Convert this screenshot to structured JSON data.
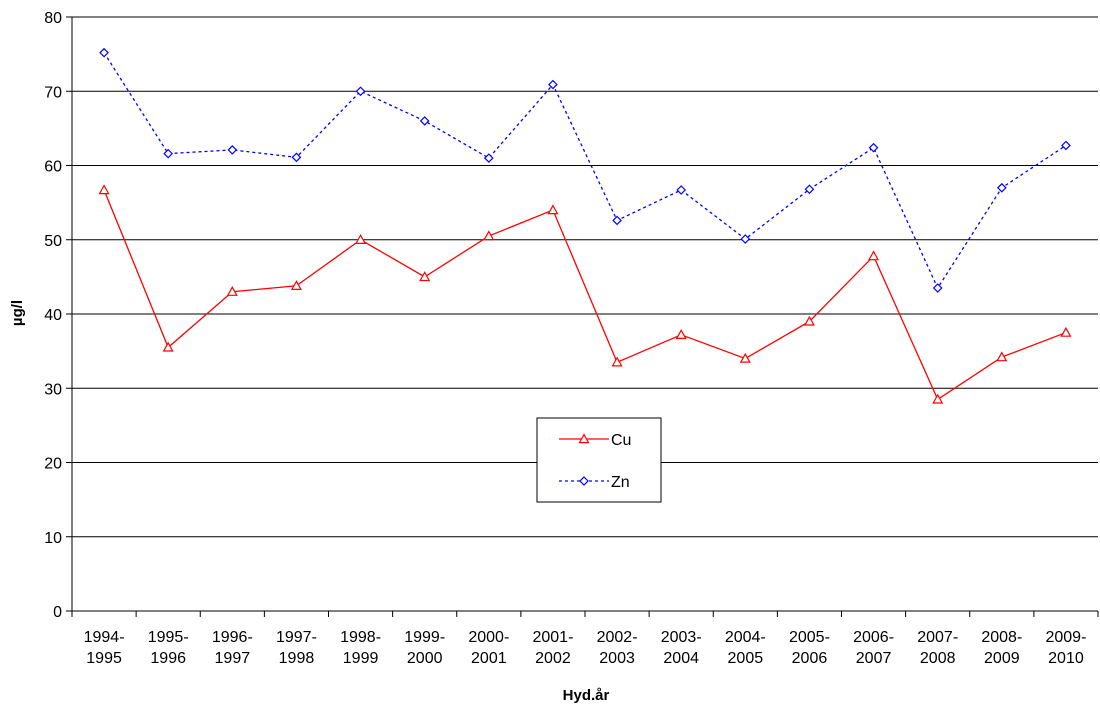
{
  "chart_data": {
    "type": "line",
    "title": "",
    "xlabel": "Hyd.år",
    "ylabel": "µg/l",
    "ylim": [
      0,
      80
    ],
    "yticks": [
      0,
      10,
      20,
      30,
      40,
      50,
      60,
      70,
      80
    ],
    "grid": true,
    "legend_position": "center",
    "categories": [
      [
        "1994-",
        "1995"
      ],
      [
        "1995-",
        "1996"
      ],
      [
        "1996-",
        "1997"
      ],
      [
        "1997-",
        "1998"
      ],
      [
        "1998-",
        "1999"
      ],
      [
        "1999-",
        "2000"
      ],
      [
        "2000-",
        "2001"
      ],
      [
        "2001-",
        "2002"
      ],
      [
        "2002-",
        "2003"
      ],
      [
        "2003-",
        "2004"
      ],
      [
        "2004-",
        "2005"
      ],
      [
        "2005-",
        "2006"
      ],
      [
        "2006-",
        "2007"
      ],
      [
        "2007-",
        "2008"
      ],
      [
        "2008-",
        "2009"
      ],
      [
        "2009-",
        "2010"
      ]
    ],
    "series": [
      {
        "name": "Cu",
        "color": "#ff0000",
        "line_style": "solid",
        "marker": "triangle",
        "values": [
          56.7,
          35.5,
          43.0,
          43.8,
          50.0,
          45.0,
          50.5,
          54.0,
          33.5,
          37.2,
          34.0,
          39.0,
          47.8,
          28.5,
          34.2,
          37.5
        ]
      },
      {
        "name": "Zn",
        "color": "#0000ff",
        "line_style": "dotted",
        "marker": "diamond",
        "values": [
          75.2,
          61.6,
          62.1,
          61.1,
          70.0,
          66.0,
          61.0,
          70.9,
          52.6,
          56.7,
          50.1,
          56.8,
          62.4,
          43.5,
          57.0,
          62.7
        ]
      }
    ]
  }
}
